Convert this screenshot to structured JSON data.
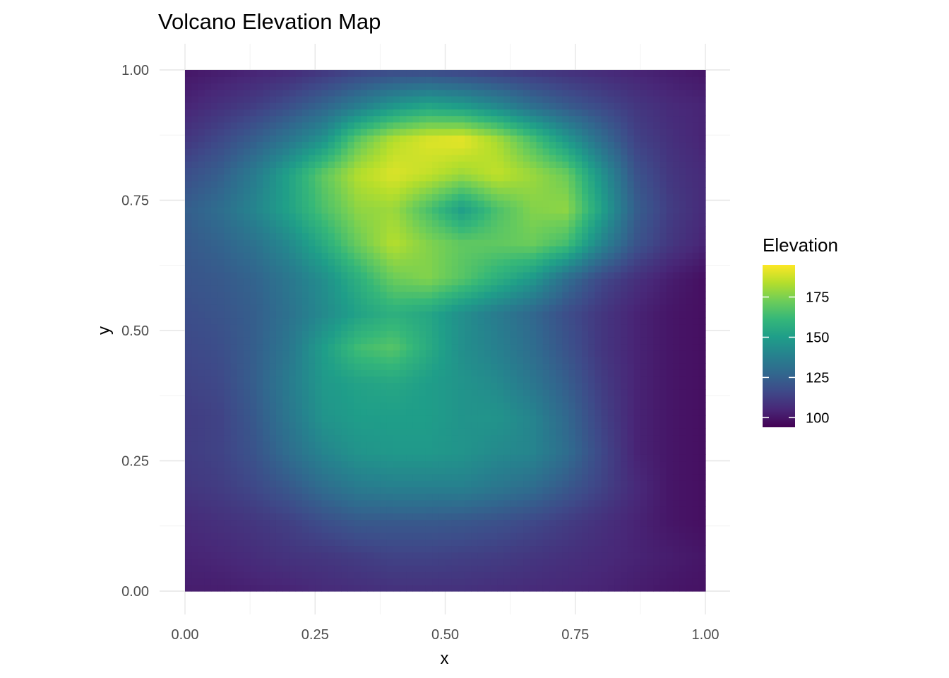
{
  "chart_data": {
    "type": "heatmap",
    "title": "Volcano Elevation Map",
    "xlabel": "x",
    "ylabel": "y",
    "xlim": [
      0,
      1
    ],
    "ylim": [
      0,
      1
    ],
    "x_ticks": [
      "0.00",
      "0.25",
      "0.50",
      "0.75",
      "1.00"
    ],
    "y_ticks": [
      "0.00",
      "0.25",
      "0.50",
      "0.75",
      "1.00"
    ],
    "grid": true,
    "legend": {
      "title": "Elevation",
      "placement": "right",
      "labels": [
        "175",
        "150",
        "125",
        "100"
      ],
      "breaks": [
        175,
        150,
        125,
        100
      ],
      "range": [
        94,
        195
      ],
      "palette": "viridis"
    },
    "colors": [
      "#440154",
      "#482878",
      "#3E4A89",
      "#31688E",
      "#26828E",
      "#1F9E89",
      "#35B779",
      "#6DCD59",
      "#B4DE2C",
      "#FDE725"
    ],
    "cols": 16,
    "rows": 16,
    "z": [
      [
        102,
        102,
        103,
        104,
        106,
        107,
        108,
        108,
        108,
        107,
        106,
        105,
        104,
        102,
        100,
        99
      ],
      [
        104,
        105,
        107,
        109,
        110,
        112,
        114,
        114,
        113,
        112,
        110,
        108,
        106,
        104,
        102,
        100
      ],
      [
        106,
        108,
        110,
        113,
        118,
        122,
        122,
        122,
        121,
        119,
        116,
        112,
        108,
        104,
        100,
        98
      ],
      [
        110,
        112,
        116,
        122,
        130,
        136,
        138,
        138,
        138,
        134,
        130,
        122,
        114,
        106,
        100,
        98
      ],
      [
        112,
        114,
        120,
        130,
        140,
        146,
        148,
        148,
        146,
        142,
        140,
        130,
        116,
        104,
        100,
        98
      ],
      [
        112,
        114,
        122,
        134,
        146,
        150,
        150,
        150,
        146,
        146,
        140,
        128,
        114,
        104,
        100,
        98
      ],
      [
        114,
        116,
        124,
        136,
        148,
        152,
        154,
        150,
        146,
        142,
        134,
        124,
        112,
        104,
        100,
        98
      ],
      [
        116,
        118,
        124,
        134,
        150,
        164,
        168,
        156,
        144,
        138,
        130,
        120,
        110,
        104,
        100,
        98
      ],
      [
        118,
        120,
        124,
        132,
        142,
        152,
        158,
        154,
        144,
        136,
        128,
        118,
        110,
        104,
        100,
        98
      ],
      [
        120,
        122,
        126,
        134,
        144,
        158,
        172,
        176,
        168,
        158,
        148,
        130,
        116,
        108,
        102,
        98
      ],
      [
        122,
        126,
        132,
        142,
        156,
        172,
        184,
        176,
        170,
        170,
        172,
        164,
        140,
        120,
        110,
        104
      ],
      [
        124,
        130,
        140,
        152,
        166,
        178,
        180,
        166,
        150,
        166,
        176,
        178,
        152,
        124,
        112,
        106
      ],
      [
        118,
        124,
        136,
        152,
        170,
        184,
        190,
        186,
        180,
        186,
        180,
        172,
        146,
        120,
        110,
        106
      ],
      [
        110,
        116,
        124,
        134,
        146,
        170,
        184,
        190,
        192,
        182,
        166,
        148,
        130,
        114,
        108,
        104
      ],
      [
        104,
        108,
        112,
        118,
        126,
        136,
        146,
        152,
        148,
        140,
        130,
        122,
        116,
        110,
        106,
        104
      ],
      [
        100,
        102,
        104,
        106,
        110,
        114,
        116,
        116,
        114,
        112,
        110,
        108,
        106,
        104,
        102,
        100
      ]
    ]
  }
}
